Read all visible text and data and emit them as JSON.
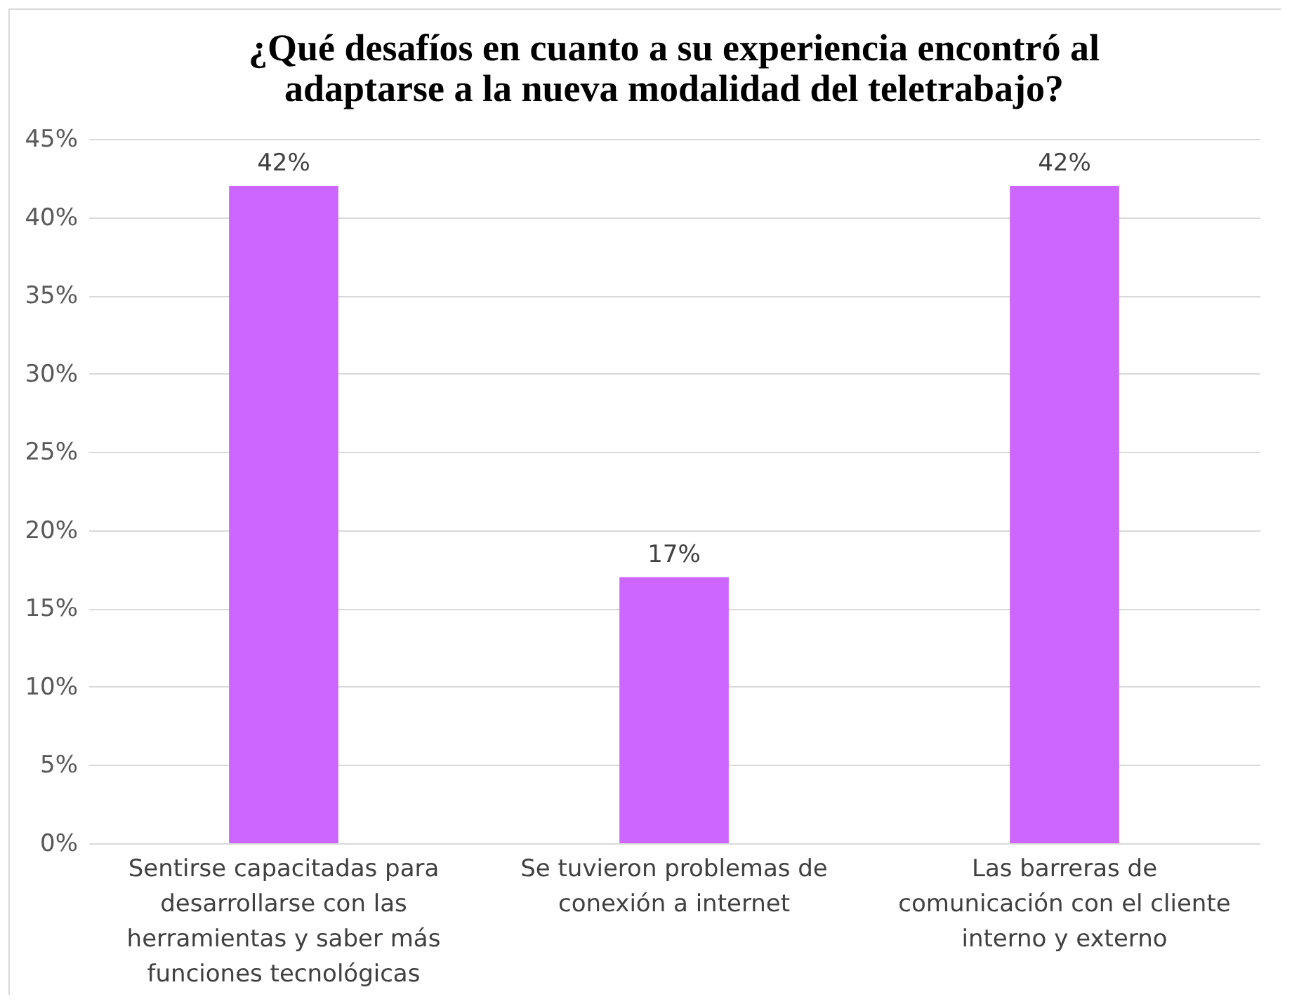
{
  "chart_data": {
    "type": "bar",
    "title": "¿Qué desafíos en cuanto a su experiencia encontró al adaptarse a la nueva modalidad del teletrabajo?",
    "categories": [
      "Sentirse capacitadas para desarrollarse con las herramientas y saber más funciones tecnológicas",
      "Se tuvieron problemas de conexión a internet",
      "Las barreras de comunicación con el cliente interno y externo"
    ],
    "values": [
      42,
      17,
      42
    ],
    "value_labels": [
      "42%",
      "17%",
      "42%"
    ],
    "color": "#cc66ff",
    "ylim": [
      0,
      45
    ],
    "yticks": [
      {
        "value": 0,
        "label": "0%"
      },
      {
        "value": 5,
        "label": "5%"
      },
      {
        "value": 10,
        "label": "10%"
      },
      {
        "value": 15,
        "label": "15%"
      },
      {
        "value": 20,
        "label": "20%"
      },
      {
        "value": 25,
        "label": "25%"
      },
      {
        "value": 30,
        "label": "30%"
      },
      {
        "value": 35,
        "label": "35%"
      },
      {
        "value": 40,
        "label": "40%"
      },
      {
        "value": 45,
        "label": "45%"
      }
    ],
    "grid": true
  }
}
